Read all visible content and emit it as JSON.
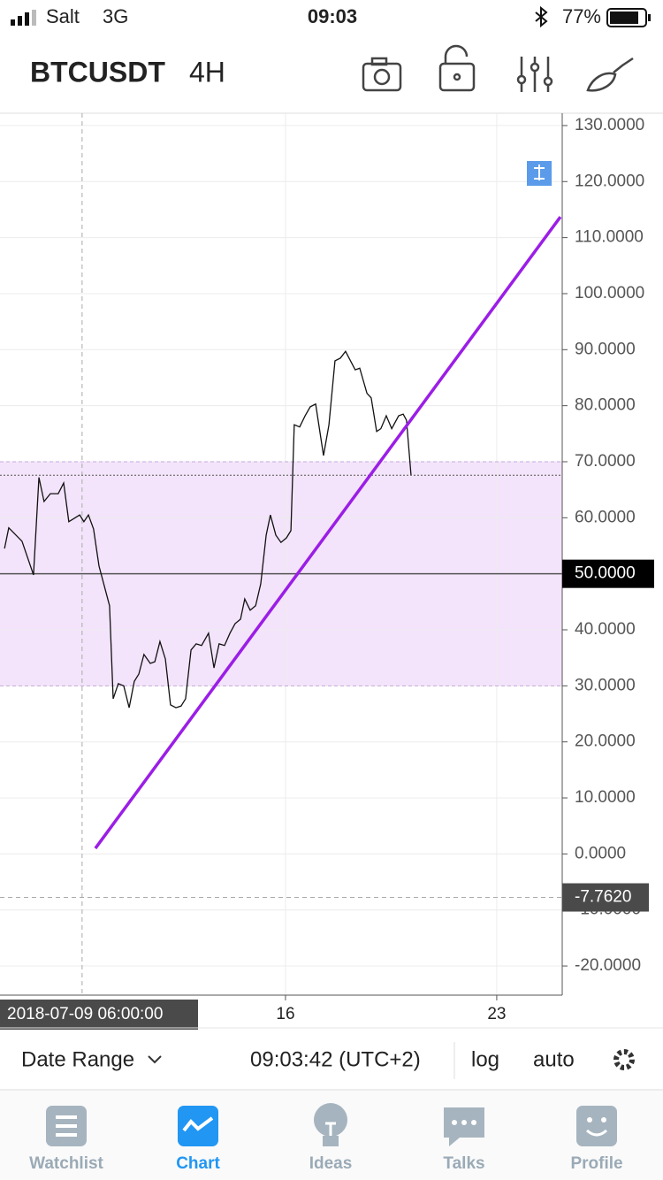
{
  "status_bar": {
    "carrier": "Salt",
    "network": "3G",
    "time": "09:03",
    "battery": "77%"
  },
  "header": {
    "symbol": "BTCUSDT",
    "interval": "4H"
  },
  "chart_data": {
    "type": "line",
    "color": "#111111",
    "x": [
      6.69,
      6.83,
      7.27,
      7.65,
      7.83,
      8.0,
      8.21,
      8.47,
      8.65,
      8.82,
      9.18,
      9.32,
      9.47,
      9.64,
      9.82,
      10.17,
      10.29,
      10.46,
      10.64,
      10.82,
      10.99,
      11.14,
      11.31,
      11.52,
      11.67,
      11.84,
      12.02,
      12.19,
      12.37,
      12.54,
      12.69,
      12.87,
      13.04,
      13.22,
      13.45,
      13.63,
      13.8,
      13.98,
      14.16,
      14.33,
      14.51,
      14.65,
      14.83,
      15.01,
      15.18,
      15.36,
      15.5,
      15.68,
      15.85,
      16.03,
      16.18,
      16.29,
      16.47,
      16.65,
      16.82,
      17.0,
      17.26,
      17.44,
      17.64,
      17.82,
      17.99,
      18.31,
      18.46,
      18.7,
      18.84,
      19.02,
      19.16,
      19.34,
      19.52,
      19.75,
      19.9,
      20.01,
      20.16
    ],
    "values": [
      54.5,
      58.2,
      55.8,
      49.8,
      67.2,
      62.9,
      64.3,
      64.3,
      66.2,
      59.3,
      60.5,
      59.3,
      60.5,
      58.0,
      51.4,
      44.3,
      27.7,
      30.4,
      30.0,
      26.1,
      30.8,
      32.1,
      35.6,
      34.0,
      34.3,
      37.9,
      34.8,
      26.6,
      26.1,
      26.4,
      27.7,
      36.4,
      37.5,
      37.2,
      39.4,
      33.2,
      37.5,
      37.2,
      39.4,
      41.1,
      41.9,
      45.5,
      43.5,
      44.3,
      48.2,
      56.9,
      60.5,
      56.9,
      55.6,
      56.4,
      57.7,
      76.6,
      76.2,
      78.2,
      79.8,
      80.3,
      71.1,
      76.6,
      88.0,
      88.5,
      89.7,
      86.4,
      86.7,
      82.2,
      81.4,
      75.4,
      75.9,
      78.2,
      75.9,
      78.2,
      78.5,
      77.4,
      67.6
    ],
    "xlim": [
      6.54,
      25.17
    ],
    "xticks": [
      16,
      23
    ],
    "ylim": [
      -25.2,
      132.2
    ],
    "yticks": [
      {
        "value": 130,
        "label": "130.0000"
      },
      {
        "value": 120,
        "label": "120.0000"
      },
      {
        "value": 110,
        "label": "110.0000"
      },
      {
        "value": 100,
        "label": "100.0000"
      },
      {
        "value": 90,
        "label": "90.0000"
      },
      {
        "value": 80,
        "label": "80.0000"
      },
      {
        "value": 70,
        "label": "70.0000"
      },
      {
        "value": 60,
        "label": "60.0000"
      },
      {
        "value": 50,
        "label": "50.0000"
      },
      {
        "value": 40,
        "label": "40.0000"
      },
      {
        "value": 30,
        "label": "30.0000"
      },
      {
        "value": 20,
        "label": "20.0000"
      },
      {
        "value": 10,
        "label": "10.0000"
      },
      {
        "value": 0,
        "label": "0.0000"
      },
      {
        "value": -10,
        "label": "-10.0000"
      },
      {
        "value": -20,
        "label": "-20.0000"
      }
    ],
    "grid": true,
    "trend_line": {
      "x": [
        9.7,
        25.11
      ],
      "values": [
        1.0,
        113.7
      ],
      "color": "#9b1ee6"
    },
    "range_band": {
      "values": [
        30,
        70
      ],
      "color": "#f3e4fb"
    },
    "horizontal_line": {
      "value": 50,
      "label": "50.0000"
    },
    "crosshair": {
      "x": 9.26,
      "x_label": "2018-07-09 06:00:00",
      "y": -7.762,
      "y_label": "-7.7620"
    }
  },
  "toolbar": {
    "date_range": "Date Range",
    "clock": "09:03:42 (UTC+2)",
    "log": "log",
    "auto": "auto"
  },
  "tabs": [
    "Watchlist",
    "Chart",
    "Ideas",
    "Talks",
    "Profile"
  ]
}
